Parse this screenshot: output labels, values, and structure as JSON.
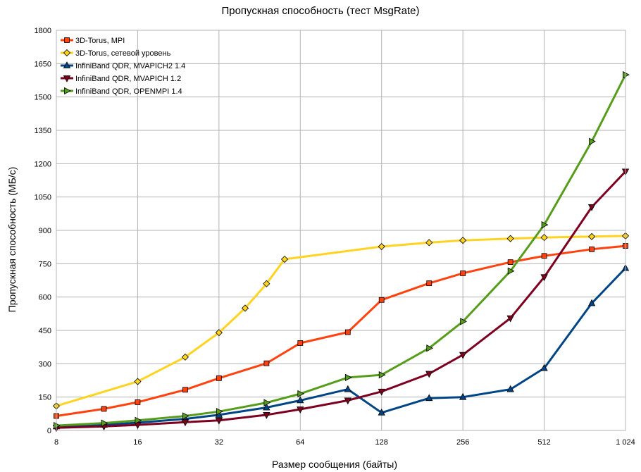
{
  "chart_data": {
    "type": "line",
    "title": "Пропускная способность (тест MsgRate)",
    "xlabel": "Размер сообщения (байты)",
    "ylabel": "Пропускная способность (МБ/с)",
    "x_scale": "log2",
    "xlim": [
      8,
      1024
    ],
    "ylim": [
      0,
      1800
    ],
    "x_ticks": [
      8,
      16,
      32,
      64,
      128,
      256,
      512,
      1024
    ],
    "x_tick_labels": [
      "8",
      "16",
      "32",
      "64",
      "128",
      "256",
      "512",
      "1 024"
    ],
    "y_ticks": [
      0,
      150,
      300,
      450,
      600,
      750,
      900,
      1050,
      1200,
      1350,
      1500,
      1650,
      1800
    ],
    "grid": true,
    "legend_position": "top-left",
    "series": [
      {
        "name": "3D-Torus, MPI",
        "color": "#ff420e",
        "marker": "square",
        "x": [
          8,
          12,
          16,
          24,
          32,
          48,
          64,
          96,
          128,
          192,
          256,
          384,
          512,
          768,
          1024
        ],
        "values": [
          65,
          97,
          127,
          183,
          235,
          302,
          393,
          442,
          587,
          662,
          707,
          757,
          785,
          815,
          830
        ]
      },
      {
        "name": "3D-Torus, сетевой уровень",
        "color": "#ffd320",
        "marker": "diamond",
        "x": [
          8,
          16,
          24,
          32,
          40,
          48,
          56,
          128,
          192,
          256,
          384,
          512,
          768,
          1024
        ],
        "values": [
          110,
          220,
          330,
          440,
          550,
          660,
          770,
          827,
          845,
          855,
          863,
          868,
          872,
          875
        ]
      },
      {
        "name": "InfiniBand QDR, MVAPICH2 1.4",
        "color": "#004586",
        "marker": "triangle-up",
        "x": [
          8,
          12,
          16,
          24,
          32,
          48,
          64,
          96,
          128,
          192,
          256,
          384,
          512,
          768,
          1024
        ],
        "values": [
          18,
          25,
          35,
          52,
          70,
          103,
          135,
          185,
          80,
          145,
          150,
          185,
          280,
          572,
          730
        ]
      },
      {
        "name": "InfiniBand QDR, MVAPICH 1.2",
        "color": "#7e0021",
        "marker": "triangle-down",
        "x": [
          8,
          12,
          16,
          24,
          32,
          48,
          64,
          96,
          128,
          192,
          256,
          384,
          512,
          768,
          1024
        ],
        "values": [
          12,
          18,
          25,
          37,
          45,
          70,
          95,
          135,
          175,
          255,
          340,
          505,
          690,
          1005,
          1165
        ]
      },
      {
        "name": "InfiniBand QDR, OPENMPI 1.4",
        "color": "#579d1c",
        "marker": "triangle-right",
        "x": [
          8,
          12,
          16,
          24,
          32,
          48,
          64,
          96,
          128,
          192,
          256,
          384,
          512,
          768,
          1024
        ],
        "values": [
          22,
          33,
          45,
          65,
          85,
          125,
          165,
          238,
          250,
          370,
          490,
          717,
          925,
          1300,
          1600
        ]
      }
    ]
  }
}
